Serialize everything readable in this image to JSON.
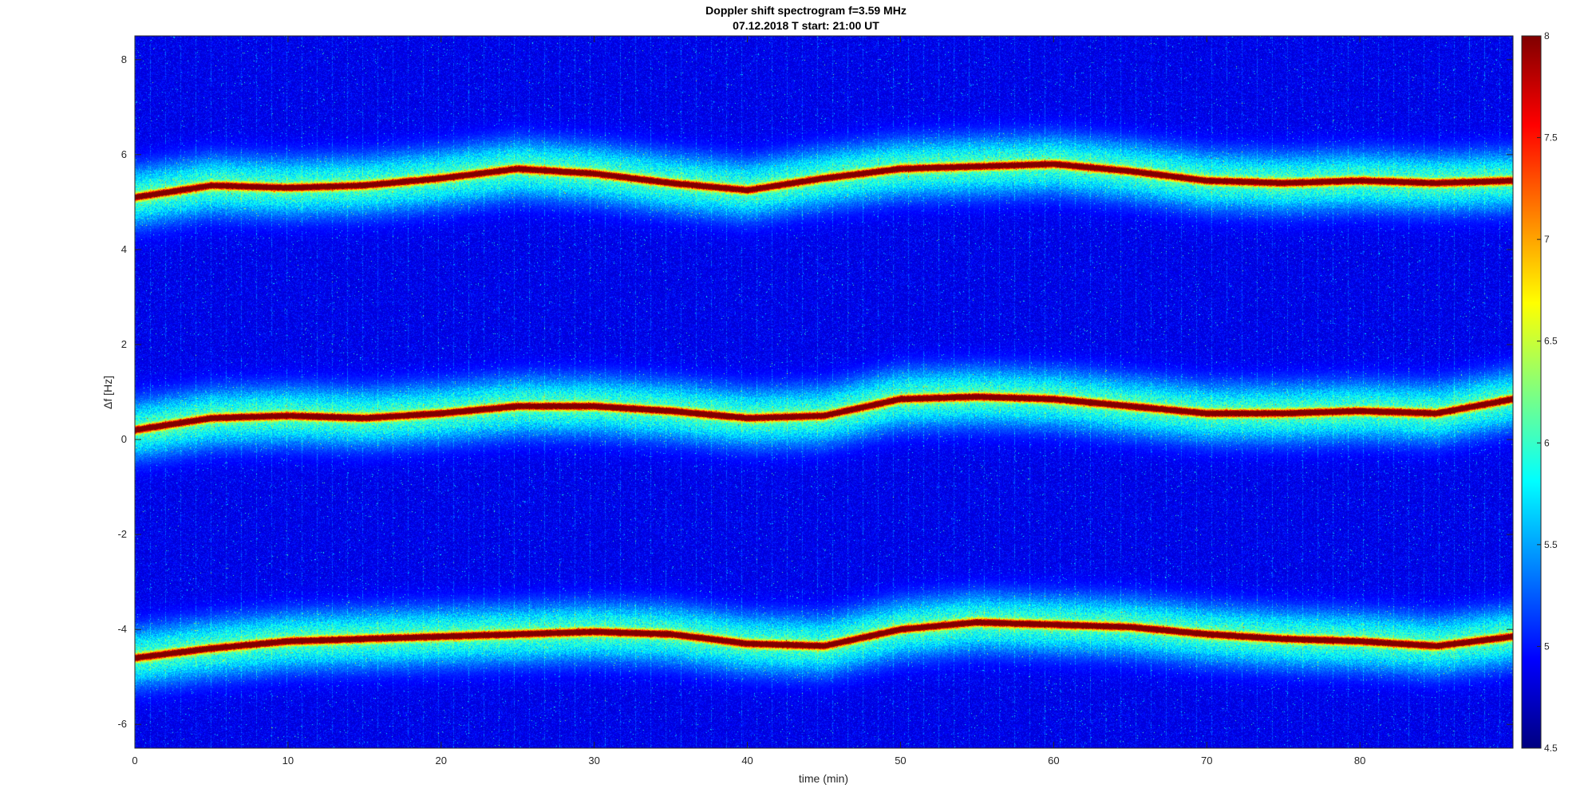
{
  "chart_data": {
    "type": "heatmap",
    "title": "Doppler shift spectrogram f=3.59 MHz",
    "subtitle": "07.12.2018   T start: 21:00 UT",
    "xlabel": "time (min)",
    "ylabel": "Δf [Hz]",
    "xlim": [
      0,
      90
    ],
    "ylim": [
      -6.5,
      8.5
    ],
    "x_ticks": [
      0,
      10,
      20,
      30,
      40,
      50,
      60,
      70,
      80
    ],
    "y_ticks": [
      -6,
      -4,
      -2,
      0,
      2,
      4,
      6,
      8
    ],
    "colormap": "jet",
    "clim": [
      4.5,
      8
    ],
    "colorbar_ticks": [
      4.5,
      5,
      5.5,
      6,
      6.5,
      7,
      7.5,
      8
    ],
    "colorbar_position": "right",
    "grid": false,
    "background_level": 4.8,
    "traces": [
      {
        "peak_level": 7.9,
        "time": [
          0,
          5,
          10,
          15,
          20,
          25,
          30,
          35,
          40,
          45,
          50,
          55,
          60,
          65,
          70,
          75,
          80,
          85,
          90
        ],
        "freq": [
          5.1,
          5.35,
          5.3,
          5.35,
          5.5,
          5.7,
          5.6,
          5.4,
          5.25,
          5.5,
          5.7,
          5.75,
          5.8,
          5.65,
          5.45,
          5.4,
          5.45,
          5.4,
          5.45
        ]
      },
      {
        "peak_level": 8,
        "time": [
          0,
          5,
          10,
          15,
          20,
          25,
          30,
          35,
          40,
          45,
          50,
          55,
          60,
          65,
          70,
          75,
          80,
          85,
          90
        ],
        "freq": [
          0.2,
          0.45,
          0.5,
          0.45,
          0.55,
          0.7,
          0.7,
          0.6,
          0.45,
          0.5,
          0.85,
          0.9,
          0.85,
          0.7,
          0.55,
          0.55,
          0.6,
          0.55,
          0.85
        ]
      },
      {
        "peak_level": 8,
        "time": [
          0,
          5,
          10,
          15,
          20,
          25,
          30,
          35,
          40,
          45,
          50,
          55,
          60,
          65,
          70,
          75,
          80,
          85,
          90
        ],
        "freq": [
          -4.6,
          -4.4,
          -4.25,
          -4.2,
          -4.15,
          -4.1,
          -4.05,
          -4.1,
          -4.3,
          -4.35,
          -4.0,
          -3.85,
          -3.9,
          -3.95,
          -4.1,
          -4.2,
          -4.25,
          -4.35,
          -4.15
        ]
      }
    ]
  }
}
